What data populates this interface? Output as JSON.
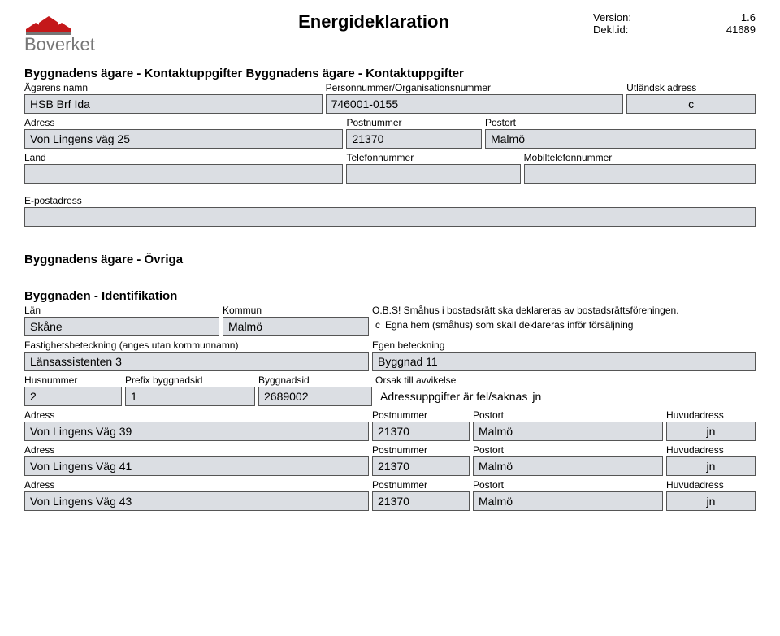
{
  "colors": {
    "fieldBg": "#DBDEE3",
    "border": "#555555",
    "text": "#000000",
    "logoRed": "#C4181A",
    "logoGray": "#767676"
  },
  "header": {
    "title": "Energideklaration",
    "versionLabel": "Version:",
    "versionValue": "1.6",
    "deklLabel": "Dekl.id:",
    "deklValue": "41689",
    "logoText": "Boverket"
  },
  "section1": {
    "heading": "Byggnadens ägare - Kontaktuppgifter Byggnadens ägare - Kontaktuppgifter",
    "ownerNameLabel": "Ägarens namn",
    "ownerName": "HSB Brf Ida",
    "orgNrLabel": "Personnummer/Organisationsnummer",
    "orgNr": "746001-0155",
    "foreignLabel": "Utländsk adress",
    "foreignMark": "c",
    "addressLabel": "Adress",
    "address": "Von Lingens väg 25",
    "postnrLabel": "Postnummer",
    "postnr": "21370",
    "postortLabel": "Postort",
    "postort": "Malmö",
    "landLabel": "Land",
    "telLabel": "Telefonnummer",
    "mobilLabel": "Mobiltelefonnummer",
    "emailLabel": "E-postadress"
  },
  "section2": {
    "heading": "Byggnadens ägare - Övriga"
  },
  "section3": {
    "heading": "Byggnaden - Identifikation",
    "lanLabel": "Län",
    "lan": "Skåne",
    "kommunLabel": "Kommun",
    "kommun": "Malmö",
    "obs": "O.B.S! Småhus i bostadsrätt ska deklareras av bostadsrättsföreningen.",
    "egnaHem": "Egna hem (småhus) som skall deklareras inför försäljning",
    "egnaMark": "c",
    "fastLabel": "Fastighetsbeteckning (anges utan kommunnamn)",
    "fast": "Länsassistenten 3",
    "egenLabel": "Egen beteckning",
    "egen": "Byggnad 11",
    "husnrLabel": "Husnummer",
    "husnr": "2",
    "prefixLabel": "Prefix byggnadsid",
    "prefix": "1",
    "byggidLabel": "Byggnadsid",
    "byggid": "2689002",
    "orsakLabel": "Orsak till avvikelse",
    "orsak": "Adressuppgifter är fel/saknas",
    "orsakMark": "jn",
    "addresses": [
      {
        "aLabel": "Adress",
        "a": "Von Lingens Väg 39",
        "pnLabel": "Postnummer",
        "pn": "21370",
        "poLabel": "Postort",
        "po": "Malmö",
        "hLabel": "Huvudadress",
        "hMark": "jn"
      },
      {
        "aLabel": "Adress",
        "a": "Von Lingens Väg 41",
        "pnLabel": "Postnummer",
        "pn": "21370",
        "poLabel": "Postort",
        "po": "Malmö",
        "hLabel": "Huvudadress",
        "hMark": "jn"
      },
      {
        "aLabel": "Adress",
        "a": "Von Lingens Väg 43",
        "pnLabel": "Postnummer",
        "pn": "21370",
        "poLabel": "Postort",
        "po": "Malmö",
        "hLabel": "Huvudadress",
        "hMark": "jn"
      }
    ]
  }
}
